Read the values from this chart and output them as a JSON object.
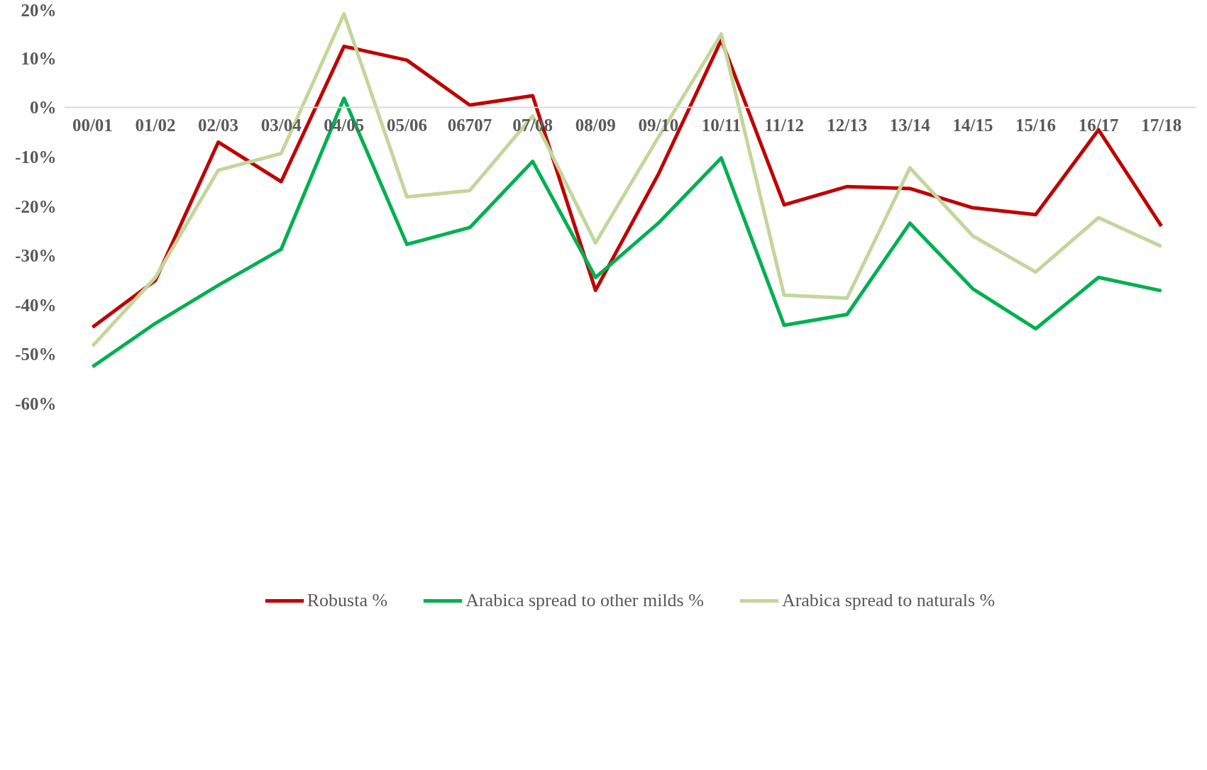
{
  "chart_data": {
    "type": "line",
    "categories": [
      "00/01",
      "01/02",
      "02/03",
      "03/04",
      "04/05",
      "05/06",
      "06707",
      "07/08",
      "08/09",
      "09/10",
      "10/11",
      "11/12",
      "12/13",
      "13/14",
      "14/15",
      "15/16",
      "16/17",
      "17/18"
    ],
    "series": [
      {
        "name": "Robusta %",
        "color": "#c00000",
        "values": [
          -44.5,
          -35,
          -7,
          -15,
          12.4,
          9.6,
          0.5,
          2.4,
          -37,
          -13.5,
          13.7,
          -19.7,
          -16,
          -16.4,
          -20.3,
          -21.7,
          -4.5,
          -24
        ]
      },
      {
        "name": "Arabica spread to other milds %",
        "color": "#00b050",
        "values": [
          -52.5,
          -43.7,
          -36,
          -28.7,
          1.9,
          -27.7,
          -24.3,
          -10.9,
          -34.4,
          -23.4,
          -10.2,
          -44.1,
          -41.9,
          -23.4,
          -36.7,
          -44.8,
          -34.4,
          -37.1
        ]
      },
      {
        "name": "Arabica spread to naturals %",
        "color": "#c3d69b",
        "values": [
          -48.3,
          -34.4,
          -12.7,
          -9.3,
          19,
          -18.1,
          -16.8,
          -1.7,
          -27.4,
          -6,
          14.9,
          -38,
          -38.6,
          -12.2,
          -26,
          -33.3,
          -22.3,
          -28.1
        ]
      }
    ],
    "ylim": [
      -60,
      20
    ],
    "yticks": [
      {
        "value": -60,
        "label": "-60%"
      },
      {
        "value": -50,
        "label": "-50%"
      },
      {
        "value": -40,
        "label": "-40%"
      },
      {
        "value": -30,
        "label": "-30%"
      },
      {
        "value": -20,
        "label": "-20%"
      },
      {
        "value": -10,
        "label": "-10%"
      },
      {
        "value": 0,
        "label": "0%"
      },
      {
        "value": 10,
        "label": "10%"
      },
      {
        "value": 20,
        "label": "20%"
      }
    ],
    "grid": false,
    "legend": "bottom",
    "marker": "none",
    "line_style": "solid"
  }
}
